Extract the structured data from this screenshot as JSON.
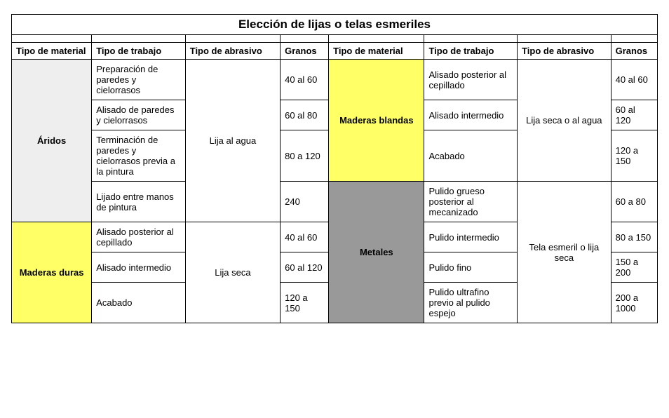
{
  "title": "Elección de lijas o telas esmeriles",
  "headers": {
    "material": "Tipo de material",
    "work": "Tipo de trabajo",
    "abrasive": "Tipo de abrasivo",
    "grains": "Granos"
  },
  "left": {
    "group1": {
      "material": "Áridos",
      "abrasive": "Lija al agua",
      "rows": [
        {
          "work": "Preparación de paredes y cielorrasos",
          "grains": "40 al 60"
        },
        {
          "work": "Alisado de paredes y cielorrasos",
          "grains": "60 al 80"
        },
        {
          "work": "Terminación de paredes y cielorrasos previa a la pintura",
          "grains": "80 a 120"
        },
        {
          "work": "Lijado entre manos de pintura",
          "grains": "240"
        }
      ]
    },
    "group2": {
      "material": "Maderas duras",
      "abrasive": "Lija seca",
      "rows": [
        {
          "work": "Alisado posterior al cepillado",
          "grains": "40 al 60"
        },
        {
          "work": "Alisado intermedio",
          "grains": "60 al 120"
        },
        {
          "work": "Acabado",
          "grains": "120 a 150"
        }
      ]
    }
  },
  "right": {
    "group1": {
      "material": "Maderas blandas",
      "abrasive": "Lija seca o al agua",
      "rows": [
        {
          "work": "Alisado posterior al cepillado",
          "grains": "40 al 60"
        },
        {
          "work": "Alisado intermedio",
          "grains": "60 al 120"
        },
        {
          "work": "Acabado",
          "grains": "120 a 150"
        }
      ]
    },
    "group2": {
      "material": "Metales",
      "abrasive": "Tela esmeril o lija seca",
      "rows": [
        {
          "work": "Pulido grueso posterior al mecanizado",
          "grains": "60 a 80"
        },
        {
          "work": "Pulido intermedio",
          "grains": "80 a 150"
        },
        {
          "work": "Pulido fino",
          "grains": "150 a 200"
        },
        {
          "work": "Pulido ultrafino previo al pulido espejo",
          "grains": "200 a 1000"
        }
      ]
    }
  }
}
